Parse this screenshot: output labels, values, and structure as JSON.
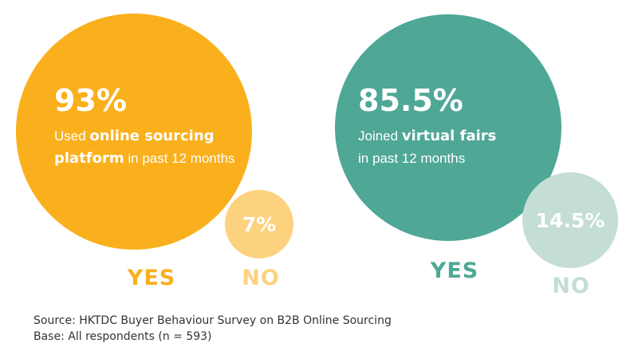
{
  "chart_data": [
    {
      "type": "bubble",
      "categories": [
        "YES",
        "NO"
      ],
      "values": [
        93,
        7
      ],
      "unit": "%",
      "value_labels": [
        "93%",
        "7%"
      ],
      "description": {
        "before": "Used ",
        "highlight_line1": "online sourcing",
        "highlight_line2": "platform",
        "after": " in past 12 months"
      },
      "colors": {
        "yes": "#FAB01C",
        "no": "#FDD27F"
      }
    },
    {
      "type": "bubble",
      "categories": [
        "YES",
        "NO"
      ],
      "values": [
        85.5,
        14.5
      ],
      "unit": "%",
      "value_labels": [
        "85.5%",
        "14.5%"
      ],
      "description": {
        "before": "Joined ",
        "highlight": "virtual fairs",
        "line2": "in past 12 months"
      },
      "colors": {
        "yes": "#4FA796",
        "no": "#C4DDD5"
      }
    }
  ],
  "footer": {
    "source": "Source: HKTDC Buyer Behaviour Survey on B2B Online Sourcing",
    "base": "Base: All respondents (n = 593)"
  }
}
